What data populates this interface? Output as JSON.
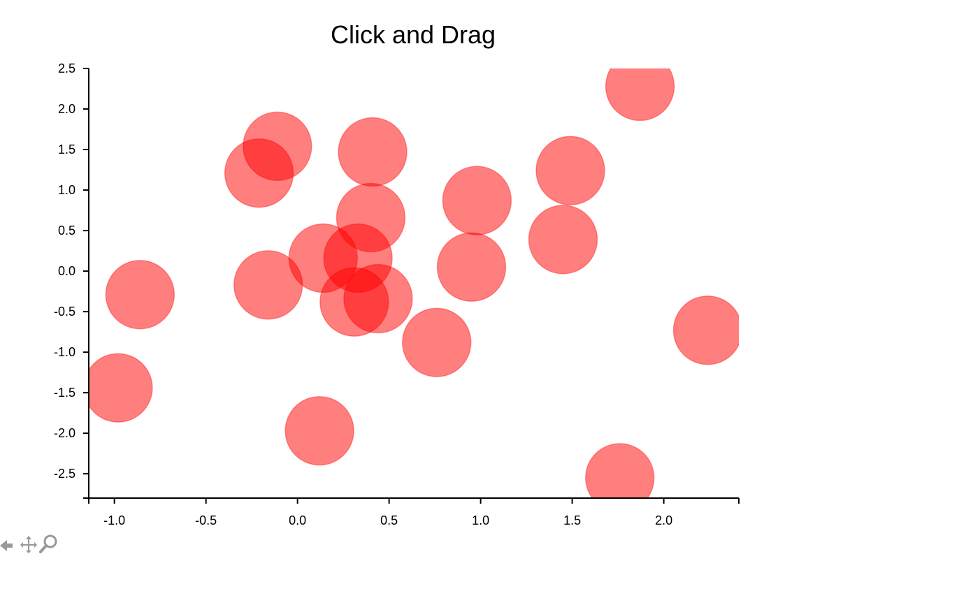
{
  "chart_data": {
    "type": "scatter",
    "title": "Click and Drag",
    "xlabel": "",
    "ylabel": "",
    "xlim": [
      -1.14,
      2.41
    ],
    "ylim": [
      -2.8,
      2.5
    ],
    "xticks": [
      -1.0,
      -0.5,
      0.0,
      0.5,
      1.0,
      1.5,
      2.0
    ],
    "xtick_labels": [
      "-1.0",
      "-0.5",
      "0.0",
      "0.5",
      "1.0",
      "1.5",
      "2.0"
    ],
    "yticks": [
      2.5,
      2.0,
      1.5,
      1.0,
      0.5,
      0.0,
      -0.5,
      -1.0,
      -1.5,
      -2.0,
      -2.5
    ],
    "ytick_labels": [
      "2.5",
      "2.0",
      "1.5",
      "1.0",
      "0.5",
      "0.0",
      "-0.5",
      "-1.0",
      "-1.5",
      "-2.0",
      "-2.5"
    ],
    "grid": false,
    "marker_color": "#ff0000",
    "marker_opacity": 0.5,
    "points": [
      {
        "x": 1.87,
        "y": 2.28
      },
      {
        "x": -0.11,
        "y": 1.54
      },
      {
        "x": 0.41,
        "y": 1.47
      },
      {
        "x": -0.21,
        "y": 1.21
      },
      {
        "x": 1.49,
        "y": 1.24
      },
      {
        "x": 0.98,
        "y": 0.87
      },
      {
        "x": 0.4,
        "y": 0.66
      },
      {
        "x": 1.45,
        "y": 0.39
      },
      {
        "x": 0.14,
        "y": 0.16
      },
      {
        "x": 0.33,
        "y": 0.16
      },
      {
        "x": 0.95,
        "y": 0.05
      },
      {
        "x": -0.16,
        "y": -0.17
      },
      {
        "x": -0.86,
        "y": -0.29
      },
      {
        "x": 0.44,
        "y": -0.34
      },
      {
        "x": 0.31,
        "y": -0.38
      },
      {
        "x": 2.24,
        "y": -0.73
      },
      {
        "x": 0.76,
        "y": -0.88
      },
      {
        "x": -0.98,
        "y": -1.44
      },
      {
        "x": 0.12,
        "y": -1.97
      },
      {
        "x": 1.76,
        "y": -2.55
      }
    ]
  },
  "toolbar": {
    "icons": [
      "back-icon",
      "pan-icon",
      "zoom-icon"
    ]
  }
}
